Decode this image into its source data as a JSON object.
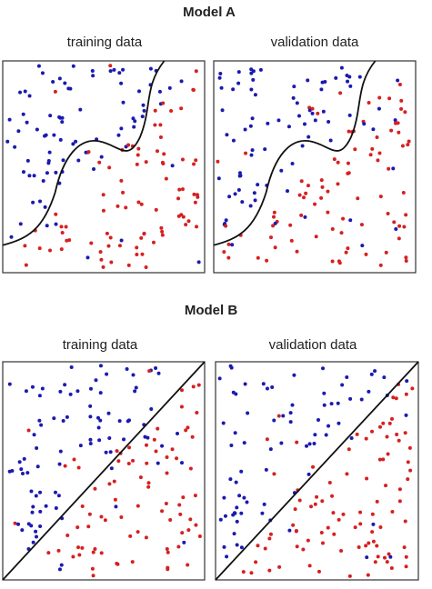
{
  "models": [
    {
      "title": "Model A",
      "plots": [
        {
          "title": "training data"
        },
        {
          "title": "validation data"
        }
      ]
    },
    {
      "title": "Model B",
      "plots": [
        {
          "title": "training data"
        },
        {
          "title": "validation data"
        }
      ]
    }
  ]
}
